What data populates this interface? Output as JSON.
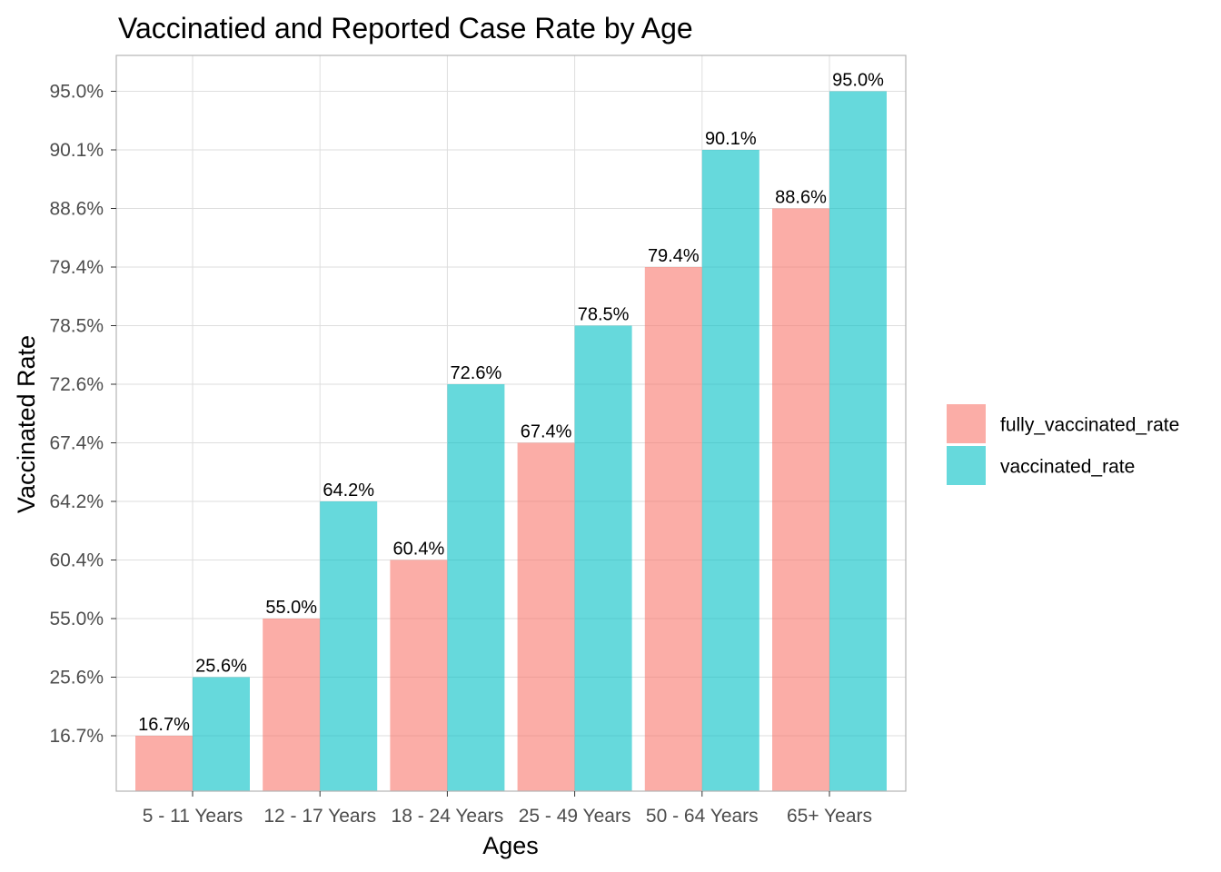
{
  "chart_data": {
    "type": "bar",
    "title": "Vaccinatied and Reported Case Rate by Age",
    "xlabel": "Ages",
    "ylabel": "Vaccinated Rate",
    "categories": [
      "5 - 11 Years",
      "12 - 17 Years",
      "18 - 24 Years",
      "25 - 49 Years",
      "50 - 64 Years",
      "65+ Years"
    ],
    "y_ticks": [
      "16.7%",
      "25.6%",
      "55.0%",
      "60.4%",
      "64.2%",
      "67.4%",
      "72.6%",
      "78.5%",
      "79.4%",
      "88.6%",
      "90.1%",
      "95.0%"
    ],
    "series": [
      {
        "name": "fully_vaccinated_rate",
        "color": "#F8766D",
        "values": [
          16.7,
          55.0,
          60.4,
          67.4,
          79.4,
          88.6
        ],
        "labels": [
          "16.7%",
          "55.0%",
          "60.4%",
          "67.4%",
          "79.4%",
          "88.6%"
        ]
      },
      {
        "name": "vaccinated_rate",
        "color": "#00BFC4",
        "values": [
          25.6,
          64.2,
          72.6,
          78.5,
          90.1,
          95.0
        ],
        "labels": [
          "25.6%",
          "64.2%",
          "72.6%",
          "78.5%",
          "90.1%",
          "95.0%"
        ]
      }
    ],
    "bar_opacity": 0.6,
    "grid": true,
    "legend_position": "right",
    "y_axis": "discrete (ordered rank of distinct values)"
  }
}
